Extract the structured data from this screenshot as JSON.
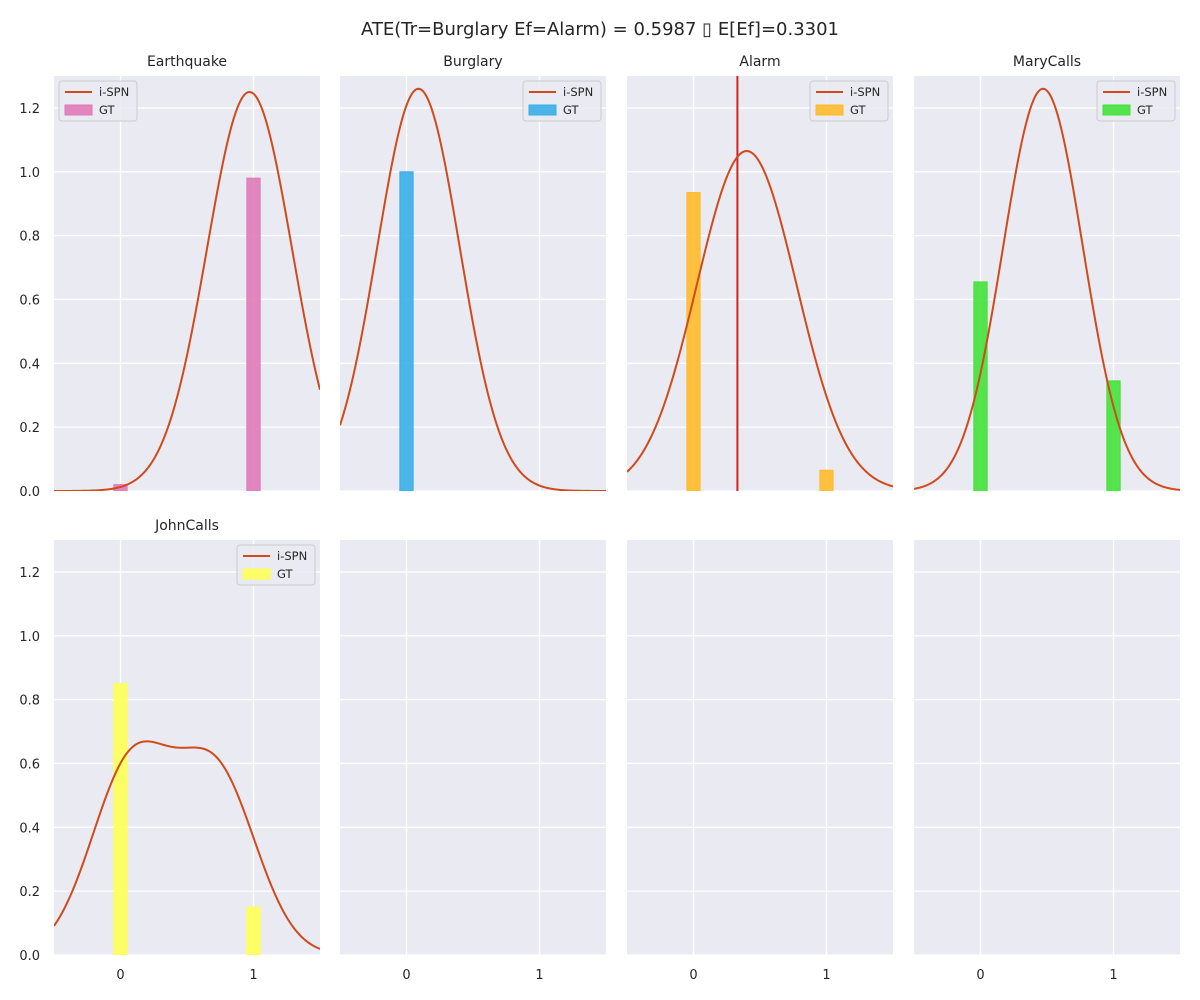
{
  "figure": {
    "title": "ATE(Tr=Burglary Ef=Alarm) = 0.5987 ▯ E[Ef]=0.3301",
    "background": "#ffffff",
    "panel_background": "#eaeaf2",
    "grid_color": "#ffffff"
  },
  "chart_data": [
    {
      "type": "bar+line",
      "title": "Earthquake",
      "xlim": [
        -0.5,
        1.5
      ],
      "ylim": [
        0,
        1.3
      ],
      "xticks": [
        "0",
        "1"
      ],
      "yticks": [
        "0.0",
        "0.2",
        "0.4",
        "0.6",
        "0.8",
        "1.0",
        "1.2"
      ],
      "legend": {
        "position": "upper left",
        "entries": [
          "i-SPN",
          "GT"
        ]
      },
      "gt": {
        "name": "GT",
        "x": [
          0,
          1
        ],
        "values": [
          0.02,
          0.98
        ],
        "width": 0.1,
        "color": "#e07ab8"
      },
      "curve": {
        "name": "i-SPN",
        "kind": "gaussian",
        "mean": 0.97,
        "sd": 0.32,
        "peak": 1.25,
        "color": "#d04a1a"
      }
    },
    {
      "type": "bar+line",
      "title": "Burglary",
      "xlim": [
        -0.5,
        1.5
      ],
      "ylim": [
        0,
        1.3
      ],
      "xticks": [
        "0",
        "1"
      ],
      "legend": {
        "position": "upper right",
        "entries": [
          "i-SPN",
          "GT"
        ]
      },
      "gt": {
        "name": "GT",
        "x": [
          0,
          1
        ],
        "values": [
          1.0,
          0.0
        ],
        "width": 0.1,
        "color": "#3aaee8"
      },
      "curve": {
        "name": "i-SPN",
        "kind": "gaussian",
        "mean": 0.09,
        "sd": 0.31,
        "peak": 1.26,
        "color": "#d04a1a"
      }
    },
    {
      "type": "bar+line",
      "title": "Alarm",
      "xlim": [
        -0.5,
        1.5
      ],
      "ylim": [
        0,
        1.3
      ],
      "xticks": [
        "0",
        "1"
      ],
      "legend": {
        "position": "upper right",
        "entries": [
          "i-SPN",
          "GT"
        ]
      },
      "gt": {
        "name": "GT",
        "x": [
          0,
          1
        ],
        "values": [
          0.935,
          0.065
        ],
        "width": 0.1,
        "color": "#ffbb2a"
      },
      "curve": {
        "name": "i-SPN",
        "kind": "gaussian",
        "mean": 0.4,
        "sd": 0.375,
        "peak": 1.065,
        "color": "#d04a1a"
      },
      "vline": {
        "x": 0.3301,
        "color": "#d62222"
      }
    },
    {
      "type": "bar+line",
      "title": "MaryCalls",
      "xlim": [
        -0.5,
        1.5
      ],
      "ylim": [
        0,
        1.3
      ],
      "xticks": [
        "0",
        "1"
      ],
      "legend": {
        "position": "upper right",
        "entries": [
          "i-SPN",
          "GT"
        ]
      },
      "gt": {
        "name": "GT",
        "x": [
          0,
          1
        ],
        "values": [
          0.655,
          0.345
        ],
        "width": 0.1,
        "color": "#44e23a"
      },
      "curve": {
        "name": "i-SPN",
        "kind": "gaussian",
        "mean": 0.47,
        "sd": 0.3,
        "peak": 1.26,
        "color": "#d04a1a"
      }
    },
    {
      "type": "bar+line",
      "title": "JohnCalls",
      "xlim": [
        -0.5,
        1.5
      ],
      "ylim": [
        0,
        1.3
      ],
      "xticks": [
        "0",
        "1"
      ],
      "yticks": [
        "0.0",
        "0.2",
        "0.4",
        "0.6",
        "0.8",
        "1.0",
        "1.2"
      ],
      "legend": {
        "position": "upper right",
        "entries": [
          "i-SPN",
          "GT"
        ]
      },
      "gt": {
        "name": "GT",
        "x": [
          0,
          1
        ],
        "values": [
          0.85,
          0.15
        ],
        "width": 0.1,
        "color": "#ffff55"
      },
      "curve": {
        "name": "i-SPN",
        "kind": "gaussian-mixture",
        "components": [
          {
            "mean": 0.08,
            "sd": 0.3,
            "amp": 0.59
          },
          {
            "mean": 0.72,
            "sd": 0.3,
            "amp": 0.56
          }
        ],
        "color": "#d04a1a"
      }
    },
    {
      "type": "empty",
      "xlim": [
        -0.5,
        1.5
      ],
      "ylim": [
        0,
        1.3
      ],
      "xticks": [
        "0",
        "1"
      ]
    },
    {
      "type": "empty",
      "xlim": [
        -0.5,
        1.5
      ],
      "ylim": [
        0,
        1.3
      ],
      "xticks": [
        "0",
        "1"
      ]
    },
    {
      "type": "empty",
      "xlim": [
        -0.5,
        1.5
      ],
      "ylim": [
        0,
        1.3
      ],
      "xticks": [
        "0",
        "1"
      ]
    }
  ]
}
